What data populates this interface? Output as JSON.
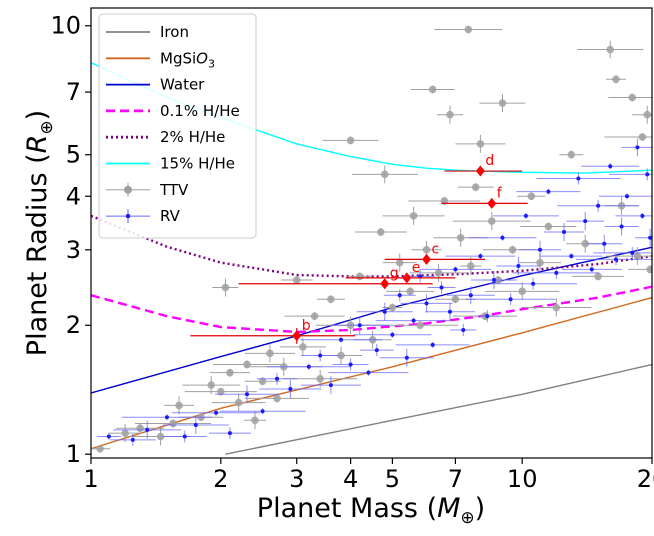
{
  "chart_data": {
    "type": "scatter",
    "xlabel": "Planet Mass (M⊕)",
    "ylabel": "Planet Radius (R⊕)",
    "x_scale": "log",
    "y_scale": "log",
    "xlim": [
      1,
      20
    ],
    "ylim": [
      0.98,
      11
    ],
    "x_ticks": [
      1,
      2,
      3,
      4,
      5,
      7,
      10,
      20
    ],
    "y_ticks": [
      1,
      2,
      3,
      4,
      5,
      7,
      10
    ],
    "legend_position": "top-left",
    "legend": [
      "Iron",
      "MgSiO3",
      "Water",
      "0.1% H/He",
      "2% H/He",
      "15% H/He",
      "TTV",
      "RV"
    ],
    "models": [
      {
        "name": "Iron",
        "color": "#808080",
        "dash": "solid",
        "x": [
          2.05,
          5,
          10,
          20
        ],
        "y": [
          1.0,
          1.2,
          1.38,
          1.62
        ]
      },
      {
        "name": "MgSiO3",
        "color": "#d2691e",
        "dash": "solid",
        "x": [
          1,
          2,
          5,
          10,
          20
        ],
        "y": [
          1.03,
          1.28,
          1.6,
          1.92,
          2.32
        ]
      },
      {
        "name": "Water",
        "color": "#0000cd",
        "dash": "solid",
        "x": [
          1,
          2,
          3,
          5,
          10,
          20
        ],
        "y": [
          1.39,
          1.69,
          1.89,
          2.2,
          2.61,
          3.04
        ]
      },
      {
        "name": "0.1% H/He",
        "color": "#ff00ff",
        "dash": "dashed",
        "x": [
          1,
          1.5,
          2,
          3,
          4,
          6,
          8,
          10,
          15,
          20
        ],
        "y": [
          2.35,
          2.1,
          1.98,
          1.93,
          1.95,
          2.02,
          2.1,
          2.18,
          2.32,
          2.46
        ]
      },
      {
        "name": "2% H/He",
        "color": "#800080",
        "dash": "dotted",
        "x": [
          1,
          1.5,
          2,
          3,
          4,
          5,
          7,
          10,
          15,
          20
        ],
        "y": [
          3.6,
          3.05,
          2.8,
          2.62,
          2.6,
          2.6,
          2.63,
          2.68,
          2.78,
          2.9
        ]
      },
      {
        "name": "15% H/He",
        "color": "#00ffff",
        "dash": "solid",
        "x": [
          1,
          1.5,
          2,
          3,
          4,
          5,
          6,
          7,
          8,
          10,
          14,
          20
        ],
        "y": [
          8.2,
          6.8,
          6.1,
          5.3,
          4.95,
          4.75,
          4.65,
          4.6,
          4.58,
          4.55,
          4.53,
          4.6
        ]
      }
    ],
    "highlighted": [
      {
        "label": "b",
        "x": 3.0,
        "y": 1.89,
        "xerr": [
          1.3,
          1.1
        ],
        "yerr": [
          0.08,
          0.08
        ]
      },
      {
        "label": "g",
        "x": 4.8,
        "y": 2.5,
        "xerr": [
          2.6,
          1.4
        ],
        "yerr": [
          0.05,
          0.05
        ]
      },
      {
        "label": "e",
        "x": 5.4,
        "y": 2.58,
        "xerr": [
          1.5,
          1.6
        ],
        "yerr": [
          0.05,
          0.05
        ]
      },
      {
        "label": "c",
        "x": 6.0,
        "y": 2.85,
        "xerr": [
          1.2,
          2.2
        ],
        "yerr": [
          0.05,
          0.05
        ]
      },
      {
        "label": "d",
        "x": 8.0,
        "y": 4.58,
        "xerr": [
          1.4,
          2.0
        ],
        "yerr": [
          0.12,
          0.12
        ]
      },
      {
        "label": "f",
        "x": 8.5,
        "y": 3.85,
        "xerr": [
          2.0,
          1.8
        ],
        "yerr": [
          0.08,
          0.08
        ]
      }
    ],
    "ttv": [
      {
        "x": 1.05,
        "y": 1.03
      },
      {
        "x": 1.2,
        "y": 1.12
      },
      {
        "x": 1.3,
        "y": 1.15
      },
      {
        "x": 1.45,
        "y": 1.1
      },
      {
        "x": 1.55,
        "y": 1.18
      },
      {
        "x": 1.6,
        "y": 1.3
      },
      {
        "x": 1.8,
        "y": 1.22
      },
      {
        "x": 1.9,
        "y": 1.45
      },
      {
        "x": 2.0,
        "y": 1.4
      },
      {
        "x": 2.05,
        "y": 2.45
      },
      {
        "x": 2.1,
        "y": 1.55
      },
      {
        "x": 2.2,
        "y": 1.32
      },
      {
        "x": 2.3,
        "y": 1.62
      },
      {
        "x": 2.4,
        "y": 1.2
      },
      {
        "x": 2.5,
        "y": 1.48
      },
      {
        "x": 2.6,
        "y": 1.72
      },
      {
        "x": 2.7,
        "y": 1.35
      },
      {
        "x": 2.8,
        "y": 1.6
      },
      {
        "x": 3.0,
        "y": 2.55
      },
      {
        "x": 3.1,
        "y": 1.78
      },
      {
        "x": 3.3,
        "y": 2.1
      },
      {
        "x": 3.4,
        "y": 1.5
      },
      {
        "x": 3.6,
        "y": 2.3
      },
      {
        "x": 3.8,
        "y": 1.7
      },
      {
        "x": 4.0,
        "y": 5.4
      },
      {
        "x": 4.0,
        "y": 2.0
      },
      {
        "x": 4.2,
        "y": 2.6
      },
      {
        "x": 4.5,
        "y": 1.85
      },
      {
        "x": 4.7,
        "y": 3.3
      },
      {
        "x": 4.8,
        "y": 4.5
      },
      {
        "x": 5.0,
        "y": 2.2
      },
      {
        "x": 5.2,
        "y": 2.8
      },
      {
        "x": 5.5,
        "y": 2.4
      },
      {
        "x": 5.6,
        "y": 3.6
      },
      {
        "x": 5.8,
        "y": 2.0
      },
      {
        "x": 6.0,
        "y": 3.0
      },
      {
        "x": 6.2,
        "y": 7.1
      },
      {
        "x": 6.4,
        "y": 2.65
      },
      {
        "x": 6.6,
        "y": 3.9
      },
      {
        "x": 6.8,
        "y": 6.2
      },
      {
        "x": 7.0,
        "y": 2.3
      },
      {
        "x": 7.2,
        "y": 3.2
      },
      {
        "x": 7.5,
        "y": 9.8
      },
      {
        "x": 7.6,
        "y": 2.75
      },
      {
        "x": 7.8,
        "y": 4.2
      },
      {
        "x": 8.0,
        "y": 5.3
      },
      {
        "x": 8.2,
        "y": 2.1
      },
      {
        "x": 8.5,
        "y": 3.5
      },
      {
        "x": 8.8,
        "y": 2.55
      },
      {
        "x": 9.0,
        "y": 6.6
      },
      {
        "x": 9.5,
        "y": 3.0
      },
      {
        "x": 10.0,
        "y": 2.4
      },
      {
        "x": 10.5,
        "y": 4.0
      },
      {
        "x": 11.0,
        "y": 2.8
      },
      {
        "x": 11.5,
        "y": 3.4
      },
      {
        "x": 12.0,
        "y": 2.2
      },
      {
        "x": 13.0,
        "y": 5.0
      },
      {
        "x": 14.0,
        "y": 3.1
      },
      {
        "x": 15.0,
        "y": 2.6
      },
      {
        "x": 16.0,
        "y": 8.8
      },
      {
        "x": 16.5,
        "y": 7.5
      },
      {
        "x": 17.0,
        "y": 3.8
      },
      {
        "x": 18.0,
        "y": 6.8
      },
      {
        "x": 18.5,
        "y": 2.9
      },
      {
        "x": 19.0,
        "y": 5.5
      },
      {
        "x": 19.5,
        "y": 6.2
      },
      {
        "x": 19.8,
        "y": 2.7
      }
    ],
    "rv": [
      {
        "x": 1.1,
        "y": 1.1
      },
      {
        "x": 1.25,
        "y": 1.08
      },
      {
        "x": 1.35,
        "y": 1.14
      },
      {
        "x": 1.5,
        "y": 1.22
      },
      {
        "x": 1.65,
        "y": 1.1
      },
      {
        "x": 1.75,
        "y": 1.17
      },
      {
        "x": 1.95,
        "y": 1.25
      },
      {
        "x": 2.1,
        "y": 1.12
      },
      {
        "x": 2.3,
        "y": 1.38
      },
      {
        "x": 2.5,
        "y": 1.26
      },
      {
        "x": 2.7,
        "y": 1.5
      },
      {
        "x": 2.9,
        "y": 1.42
      },
      {
        "x": 3.2,
        "y": 1.6
      },
      {
        "x": 3.4,
        "y": 1.7
      },
      {
        "x": 3.6,
        "y": 1.45
      },
      {
        "x": 3.8,
        "y": 1.85
      },
      {
        "x": 4.0,
        "y": 1.62
      },
      {
        "x": 4.2,
        "y": 2.0
      },
      {
        "x": 4.4,
        "y": 1.55
      },
      {
        "x": 4.6,
        "y": 1.75
      },
      {
        "x": 4.8,
        "y": 2.15
      },
      {
        "x": 5.0,
        "y": 1.9
      },
      {
        "x": 5.2,
        "y": 2.35
      },
      {
        "x": 5.4,
        "y": 1.68
      },
      {
        "x": 5.6,
        "y": 2.05
      },
      {
        "x": 5.8,
        "y": 2.6
      },
      {
        "x": 6.0,
        "y": 2.25
      },
      {
        "x": 6.2,
        "y": 1.8
      },
      {
        "x": 6.5,
        "y": 2.45
      },
      {
        "x": 6.8,
        "y": 2.15
      },
      {
        "x": 7.0,
        "y": 2.7
      },
      {
        "x": 7.3,
        "y": 1.95
      },
      {
        "x": 7.6,
        "y": 2.35
      },
      {
        "x": 8.0,
        "y": 2.9
      },
      {
        "x": 8.3,
        "y": 2.1
      },
      {
        "x": 8.6,
        "y": 2.55
      },
      {
        "x": 9.0,
        "y": 3.2
      },
      {
        "x": 9.4,
        "y": 2.3
      },
      {
        "x": 9.8,
        "y": 2.75
      },
      {
        "x": 10.2,
        "y": 3.6
      },
      {
        "x": 10.6,
        "y": 2.5
      },
      {
        "x": 11.0,
        "y": 3.0
      },
      {
        "x": 11.5,
        "y": 4.1
      },
      {
        "x": 12.0,
        "y": 2.65
      },
      {
        "x": 12.5,
        "y": 3.3
      },
      {
        "x": 13.0,
        "y": 2.9
      },
      {
        "x": 13.5,
        "y": 4.4
      },
      {
        "x": 14.0,
        "y": 3.5
      },
      {
        "x": 14.5,
        "y": 2.7
      },
      {
        "x": 15.0,
        "y": 3.8
      },
      {
        "x": 15.5,
        "y": 3.1
      },
      {
        "x": 16.0,
        "y": 4.7
      },
      {
        "x": 16.5,
        "y": 2.85
      },
      {
        "x": 17.0,
        "y": 3.4
      },
      {
        "x": 17.5,
        "y": 4.0
      },
      {
        "x": 18.0,
        "y": 2.95
      },
      {
        "x": 18.5,
        "y": 5.2
      },
      {
        "x": 19.0,
        "y": 3.6
      },
      {
        "x": 19.5,
        "y": 4.5
      },
      {
        "x": 19.8,
        "y": 3.2
      }
    ]
  }
}
